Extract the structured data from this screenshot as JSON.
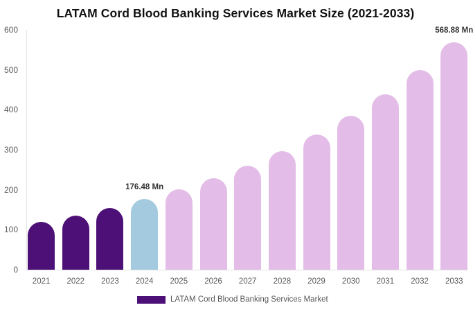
{
  "title": "LATAM Cord Blood Banking Services Market Size (2021-2033)",
  "colors": {
    "historical": "#4d1077",
    "current": "#a3cade",
    "forecast": "#e3bde7",
    "axis_line": "#e3e3e3",
    "tick_text": "#595959",
    "annotation_text": "#333333",
    "title_text": "#111111"
  },
  "chart_data": {
    "type": "bar",
    "title": "LATAM Cord Blood Banking Services Market Size (2021-2033)",
    "categories": [
      "2021",
      "2022",
      "2023",
      "2024",
      "2025",
      "2026",
      "2027",
      "2028",
      "2029",
      "2030",
      "2031",
      "2032",
      "2033"
    ],
    "values": [
      119.5,
      136,
      155,
      176.48,
      201,
      229,
      260.7,
      296.9,
      338.1,
      385.1,
      438.6,
      499.5,
      568.88
    ],
    "segments": [
      "historical",
      "historical",
      "historical",
      "current",
      "forecast",
      "forecast",
      "forecast",
      "forecast",
      "forecast",
      "forecast",
      "forecast",
      "forecast",
      "forecast"
    ],
    "annotations": [
      {
        "category": "2024",
        "text": "176.48 Mn"
      },
      {
        "category": "2033",
        "text": "568.88 Mn"
      }
    ],
    "xlabel": "",
    "ylabel": "",
    "ylim": [
      0,
      600
    ],
    "yticks": [
      0,
      100,
      200,
      300,
      400,
      500,
      600
    ],
    "grid": false,
    "legend": {
      "position": "bottom",
      "entries": [
        {
          "label": "LATAM Cord Blood Banking Services Market",
          "color": "historical"
        }
      ]
    }
  }
}
